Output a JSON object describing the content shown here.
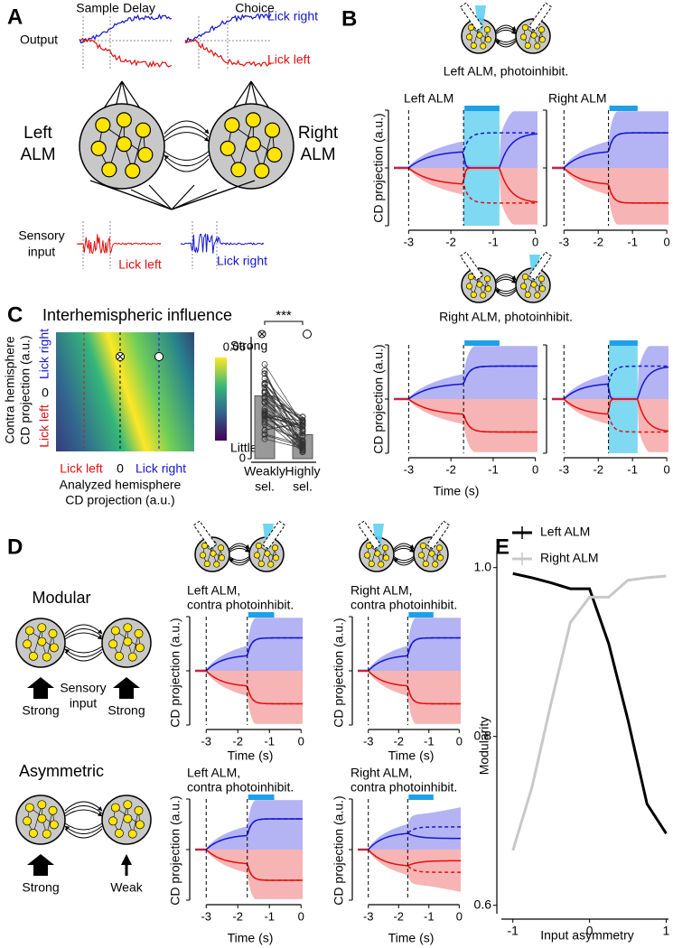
{
  "figure": {
    "panel_labels": [
      "A",
      "B",
      "C",
      "D",
      "E"
    ],
    "a": {
      "sample": "Sample",
      "delay": "Delay",
      "choice": "Choice",
      "output": "Output",
      "lick_right": "Lick right",
      "lick_left": "Lick left",
      "left_alm": [
        "Left",
        "ALM"
      ],
      "right_alm": [
        "Right",
        "ALM"
      ],
      "sensory_input": [
        "Sensory",
        "input"
      ],
      "sensory_left": "Lick left",
      "sensory_right": "Lick right"
    },
    "b": {
      "top_caption": "Left ALM, photoinhibit.",
      "bottom_caption": "Right ALM, photoinhibit.",
      "left_title": "Left ALM",
      "right_title": "Right ALM",
      "y_label": "CD projection (a.u.)",
      "x_label": "Time (s)"
    },
    "time_ticks": [
      -3,
      -2,
      -1,
      0
    ],
    "c": {
      "title": "Interhemispheric influence",
      "y_label": [
        "Contra hemisphere",
        "CD projection (a.u.)"
      ],
      "y_top": "Lick right",
      "y_bottom": "Lick left",
      "y_zero": "0",
      "x_left": "Lick left",
      "x_zero": "0",
      "x_right": "Lick right",
      "x_label": [
        "Analyzed hemisphere",
        "CD projection (a.u.)"
      ],
      "cbar_top": "Strong",
      "cbar_bottom": "Little",
      "significance": "***"
    },
    "d": {
      "modular": "Modular",
      "asymmetric": "Asymmetric",
      "sensory_input": [
        "Sensory",
        "input"
      ],
      "strong": "Strong",
      "weak": "Weak",
      "left_title": [
        "Left ALM,",
        "contra photoinhibit."
      ],
      "right_title": [
        "Right ALM,",
        "contra photoinhibit."
      ],
      "y_label": "CD projection (a.u.)",
      "x_label": "Time (s)"
    }
  },
  "chart_data": [
    {
      "type": "bar",
      "categories": [
        [
          "Weakly",
          "sel."
        ],
        [
          "Highly",
          "sel."
        ]
      ],
      "values": [
        0.034,
        0.013
      ],
      "color": "#999999",
      "ylim": [
        0,
        0.066
      ],
      "yticks": [
        0,
        0.06
      ]
    },
    {
      "type": "line",
      "x_label": "Input asymmetry",
      "y_label": "Modularity",
      "x": [
        -1,
        -0.75,
        -0.5,
        -0.25,
        0,
        0.25,
        0.5,
        0.75,
        1
      ],
      "series": [
        {
          "name": "Left ALM",
          "color": "#000000",
          "values": [
            0.993,
            0.988,
            0.982,
            0.975,
            0.975,
            0.91,
            0.82,
            0.72,
            0.685
          ]
        },
        {
          "name": "Right ALM",
          "color": "#c8c8c8",
          "values": [
            0.665,
            0.74,
            0.84,
            0.935,
            0.965,
            0.965,
            0.985,
            0.988,
            0.99
          ]
        }
      ],
      "xlim": [
        -1.15,
        1.03
      ],
      "ylim": [
        0.59,
        1.02
      ],
      "xticks": [
        -1,
        0,
        1
      ],
      "yticks": [
        0.6,
        0.8,
        {
          "value": 1,
          "label": "1.0"
        }
      ]
    }
  ]
}
